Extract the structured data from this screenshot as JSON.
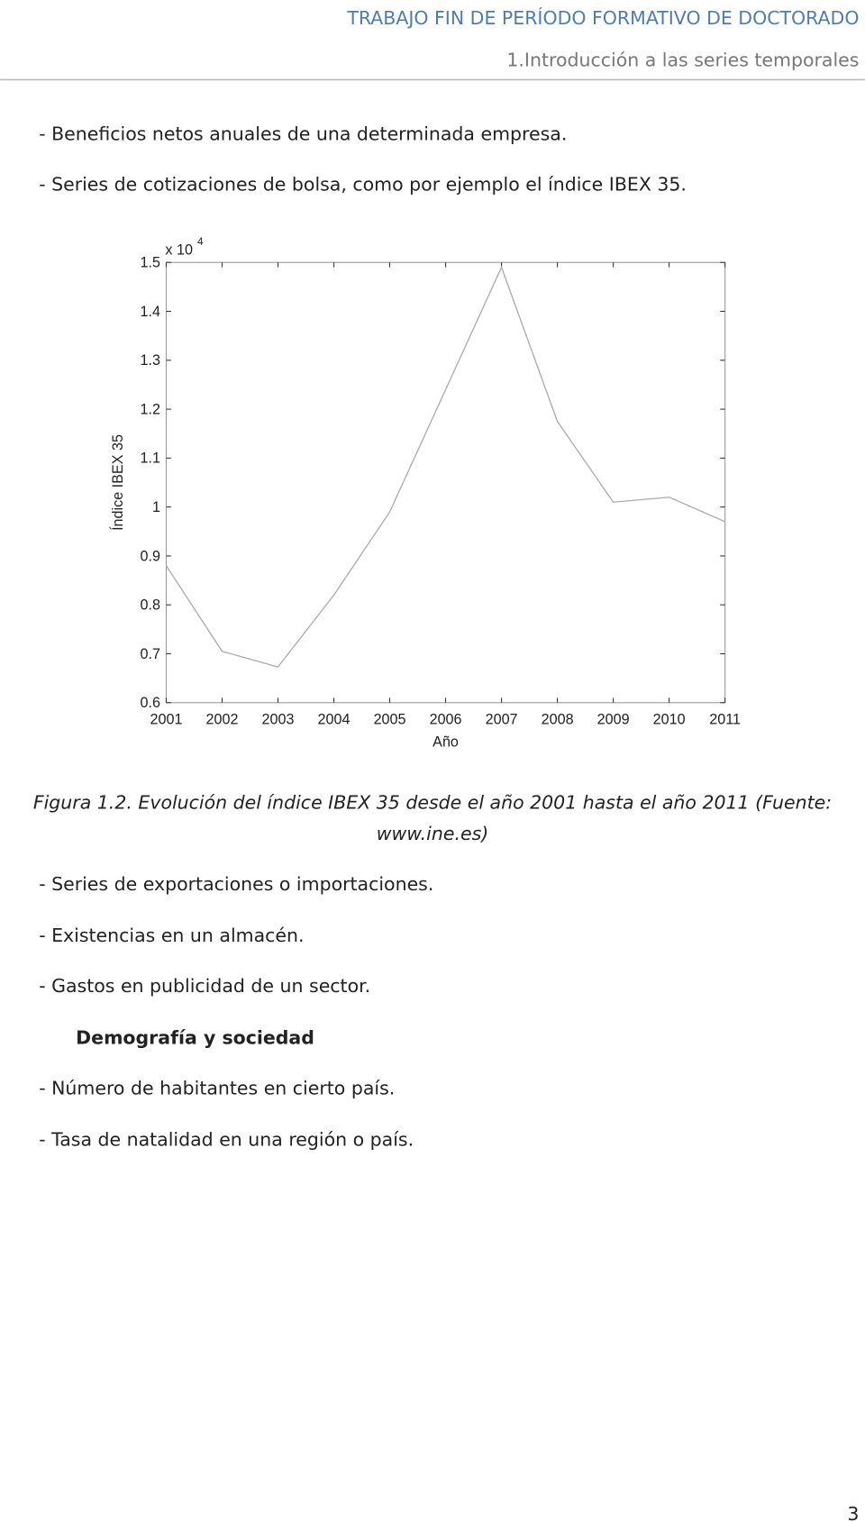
{
  "header": {
    "title": "TRABAJO FIN DE PERÍODO FORMATIVO DE DOCTORADO",
    "subtitle": "1.Introducción a las series temporales"
  },
  "paragraphs_before": [
    "- Beneficios netos anuales de una determinada empresa.",
    "- Series de cotizaciones de bolsa, como por ejemplo el índice IBEX 35."
  ],
  "chart_data": {
    "type": "line",
    "x": [
      2001,
      2002,
      2003,
      2004,
      2005,
      2006,
      2007,
      2008,
      2009,
      2010,
      2011
    ],
    "values": [
      0.88,
      0.705,
      0.673,
      0.82,
      0.99,
      1.24,
      1.49,
      1.175,
      1.01,
      1.02,
      0.97
    ],
    "color": "#aaaaaa",
    "xlabel": "Año",
    "ylabel": "Índice IBEX 35",
    "y_multiplier": {
      "base": "x 10",
      "exponent": "4"
    },
    "xlim": [
      2001,
      2011
    ],
    "xticks": [
      2001,
      2002,
      2003,
      2004,
      2005,
      2006,
      2007,
      2008,
      2009,
      2010,
      2011
    ],
    "ylim": [
      0.6,
      1.5
    ],
    "yticks": [
      0.6,
      0.7,
      0.8,
      0.9,
      1,
      1.1,
      1.2,
      1.3,
      1.4,
      1.5
    ],
    "grid": false
  },
  "caption": [
    "Figura 1.2. Evolución del índice IBEX 35 desde el año 2001 hasta el año 2011 (Fuente:",
    "www.ine.es)"
  ],
  "paragraphs_after": [
    "- Series de exportaciones o importaciones.",
    "- Existencias en un almacén.",
    "- Gastos en publicidad de un sector."
  ],
  "section_heading": "Demografía y sociedad",
  "paragraphs_end": [
    "- Número de habitantes en cierto país.",
    "- Tasa de natalidad en una región o país."
  ],
  "page_number": 3
}
